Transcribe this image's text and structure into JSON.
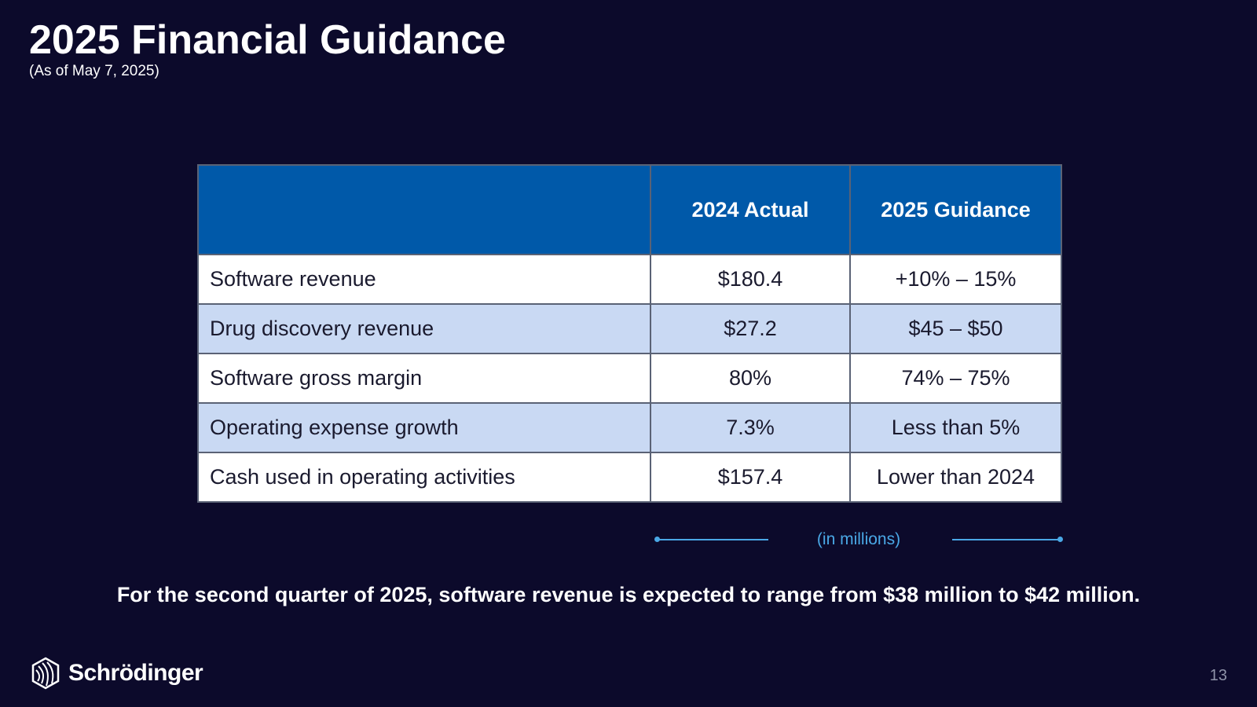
{
  "slide": {
    "title": "2025 Financial Guidance",
    "subtitle": "(As of May 7, 2025)",
    "page_number": "13"
  },
  "table": {
    "headers": [
      "",
      "2024 Actual",
      "2025 Guidance"
    ],
    "rows": [
      {
        "label": "Software revenue",
        "actual_2024": "$180.4",
        "guidance_2025": "+10% – 15%"
      },
      {
        "label": "Drug discovery revenue",
        "actual_2024": "$27.2",
        "guidance_2025": "$45 – $50"
      },
      {
        "label": "Software gross margin",
        "actual_2024": "80%",
        "guidance_2025": "74% – 75%"
      },
      {
        "label": "Operating expense growth",
        "actual_2024": "7.3%",
        "guidance_2025": "Less than 5%"
      },
      {
        "label": "Cash used in operating activities",
        "actual_2024": "$157.4",
        "guidance_2025": "Lower than 2024"
      }
    ],
    "units_note": "(in millions)"
  },
  "footnote": "For the second quarter of 2025, software revenue is expected to range from $38 million to $42 million.",
  "logo": {
    "icon": "schrodinger-logo-icon",
    "text": "Schrödinger"
  },
  "colors": {
    "background": "#0c0a2b",
    "header_blue": "#0059a9",
    "row_alt": "#c9d9f3",
    "accent": "#4aa8e6"
  }
}
